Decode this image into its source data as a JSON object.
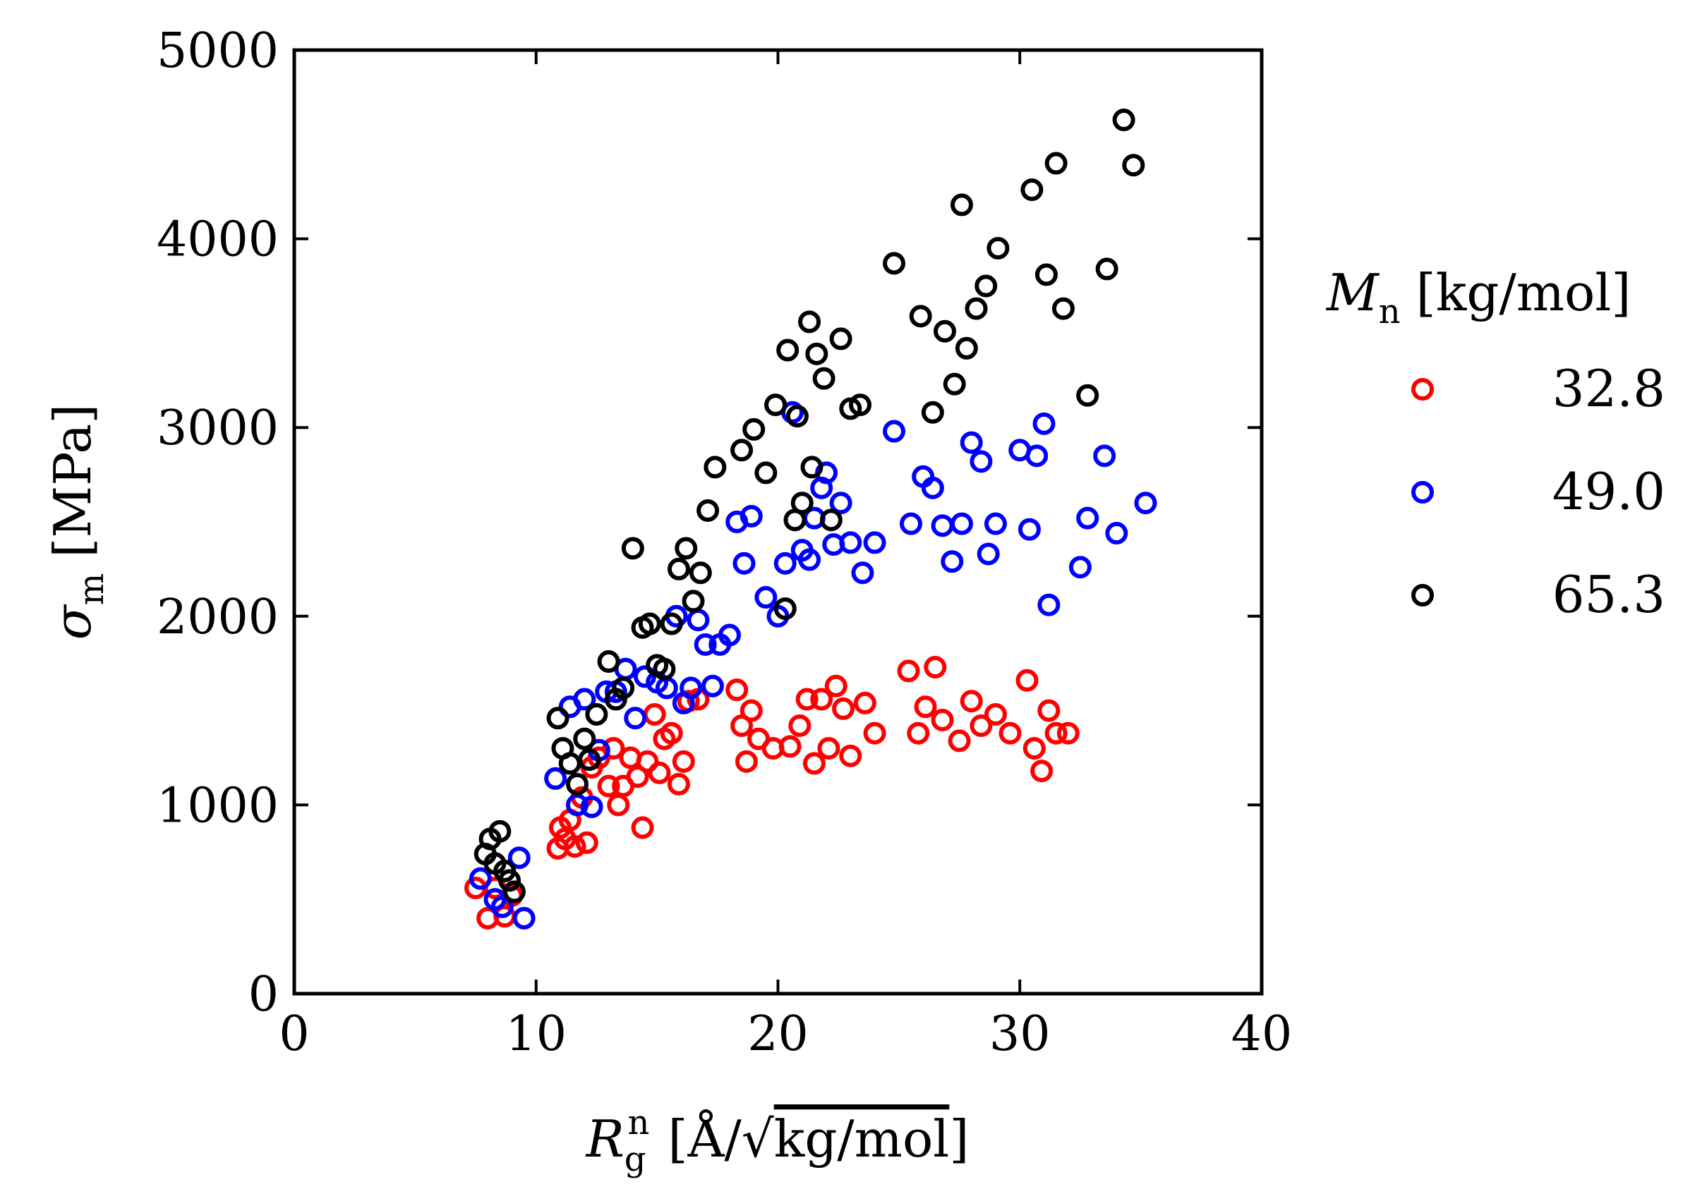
{
  "chart_data": {
    "type": "scatter",
    "xlabel_main": "R",
    "xlabel_sub": "g",
    "xlabel_sup": "n",
    "xlabel_unit_left": "[Å/",
    "xlabel_unit_root": "kg/mol",
    "xlabel_unit_right": "]",
    "ylabel_main": "σ",
    "ylabel_sub": "m",
    "ylabel_unit": "[MPa]",
    "xlim": [
      0,
      40
    ],
    "ylim": [
      0,
      5000
    ],
    "xticks": [
      0,
      10,
      20,
      30,
      40
    ],
    "yticks": [
      0,
      1000,
      2000,
      3000,
      4000,
      5000
    ],
    "xtick_labels": [
      "0",
      "10",
      "20",
      "30",
      "40"
    ],
    "ytick_labels": [
      "0",
      "1000",
      "2000",
      "3000",
      "4000",
      "5000"
    ],
    "grid": false,
    "legend_position": "right",
    "legend_title_main": "M",
    "legend_title_sub": "n",
    "legend_title_unit": "[kg/mol]",
    "series": [
      {
        "name": "32.8",
        "color": "#ff0000",
        "x": [
          7.5,
          8.0,
          8.3,
          8.7,
          9.0,
          10.9,
          11.0,
          11.2,
          11.4,
          11.6,
          11.9,
          12.1,
          12.3,
          12.6,
          13.0,
          13.2,
          13.4,
          13.6,
          13.9,
          14.2,
          14.4,
          14.6,
          14.9,
          15.1,
          15.3,
          15.6,
          15.9,
          16.1,
          16.3,
          16.7,
          18.3,
          18.5,
          18.7,
          18.9,
          19.2,
          19.8,
          20.5,
          20.9,
          21.2,
          21.5,
          21.8,
          22.1,
          22.4,
          22.7,
          23.0,
          23.6,
          24.0,
          25.4,
          25.8,
          26.1,
          26.5,
          26.8,
          27.5,
          28.0,
          28.4,
          29.0,
          29.6,
          30.3,
          30.6,
          30.9,
          31.2,
          31.5,
          32.0
        ],
        "y": [
          560,
          400,
          560,
          410,
          520,
          770,
          880,
          820,
          920,
          780,
          1040,
          800,
          1200,
          1250,
          1100,
          1300,
          1000,
          1100,
          1250,
          1150,
          880,
          1230,
          1480,
          1170,
          1350,
          1380,
          1110,
          1230,
          1550,
          1560,
          1610,
          1420,
          1230,
          1500,
          1350,
          1300,
          1310,
          1420,
          1560,
          1220,
          1560,
          1300,
          1630,
          1510,
          1260,
          1540,
          1380,
          1710,
          1380,
          1520,
          1730,
          1450,
          1340,
          1550,
          1420,
          1480,
          1380,
          1660,
          1300,
          1180,
          1500,
          1380,
          1380
        ]
      },
      {
        "name": "49.0",
        "color": "#0000ff",
        "x": [
          7.7,
          8.3,
          8.6,
          9.3,
          9.5,
          10.8,
          11.4,
          11.7,
          12.0,
          12.3,
          12.6,
          12.9,
          13.3,
          13.7,
          14.1,
          14.5,
          15.0,
          15.4,
          15.8,
          16.1,
          16.4,
          16.7,
          17.0,
          17.3,
          17.6,
          18.0,
          18.3,
          18.6,
          18.9,
          19.5,
          20.0,
          20.3,
          20.6,
          21.0,
          21.3,
          21.5,
          21.8,
          22.0,
          22.3,
          22.6,
          23.0,
          23.5,
          24.0,
          24.8,
          25.5,
          26.0,
          26.4,
          26.8,
          27.2,
          27.6,
          28.0,
          28.4,
          28.7,
          29.0,
          30.0,
          30.4,
          30.7,
          31.0,
          31.2,
          32.5,
          32.8,
          33.5,
          34.0,
          35.2
        ],
        "y": [
          610,
          500,
          460,
          720,
          400,
          1140,
          1520,
          1000,
          1560,
          990,
          1290,
          1600,
          1600,
          1720,
          1460,
          1680,
          1650,
          1620,
          2000,
          1540,
          1620,
          1980,
          1850,
          1630,
          1850,
          1900,
          2500,
          2280,
          2530,
          2100,
          2000,
          2280,
          3080,
          2350,
          2300,
          2520,
          2680,
          2760,
          2380,
          2600,
          2390,
          2230,
          2390,
          2980,
          2490,
          2740,
          2680,
          2480,
          2290,
          2490,
          2920,
          2820,
          2330,
          2490,
          2880,
          2460,
          2850,
          3020,
          2060,
          2260,
          2520,
          2850,
          2440,
          2600
        ]
      },
      {
        "name": "65.3",
        "color": "#000000",
        "x": [
          7.9,
          8.1,
          8.3,
          8.5,
          8.7,
          8.9,
          9.1,
          10.9,
          11.1,
          11.4,
          11.7,
          12.0,
          12.2,
          12.5,
          13.0,
          13.3,
          13.6,
          14.0,
          14.4,
          14.7,
          15.0,
          15.3,
          15.6,
          15.9,
          16.2,
          16.5,
          16.8,
          17.1,
          17.4,
          18.5,
          19.0,
          19.5,
          19.9,
          20.4,
          20.8,
          21.0,
          21.3,
          21.6,
          21.9,
          22.2,
          22.6,
          23.0,
          23.4,
          24.8,
          25.9,
          26.4,
          26.9,
          27.3,
          27.6,
          27.8,
          28.2,
          28.6,
          29.1,
          30.5,
          31.1,
          31.5,
          31.8,
          32.8,
          33.6,
          34.3,
          34.7,
          20.7,
          21.4,
          20.3
        ],
        "y": [
          740,
          820,
          690,
          860,
          650,
          600,
          540,
          1460,
          1300,
          1220,
          1110,
          1350,
          1240,
          1480,
          1760,
          1560,
          1620,
          2360,
          1940,
          1960,
          1740,
          1720,
          1960,
          2250,
          2360,
          2080,
          2230,
          2560,
          2790,
          2880,
          2990,
          2760,
          3120,
          3410,
          3060,
          2600,
          3560,
          3390,
          3260,
          2510,
          3470,
          3100,
          3120,
          3870,
          3590,
          3080,
          3510,
          3230,
          4180,
          3420,
          3630,
          3750,
          3950,
          4260,
          3810,
          4400,
          3630,
          3170,
          3840,
          4630,
          4390,
          2510,
          2790,
          2040
        ]
      }
    ]
  }
}
